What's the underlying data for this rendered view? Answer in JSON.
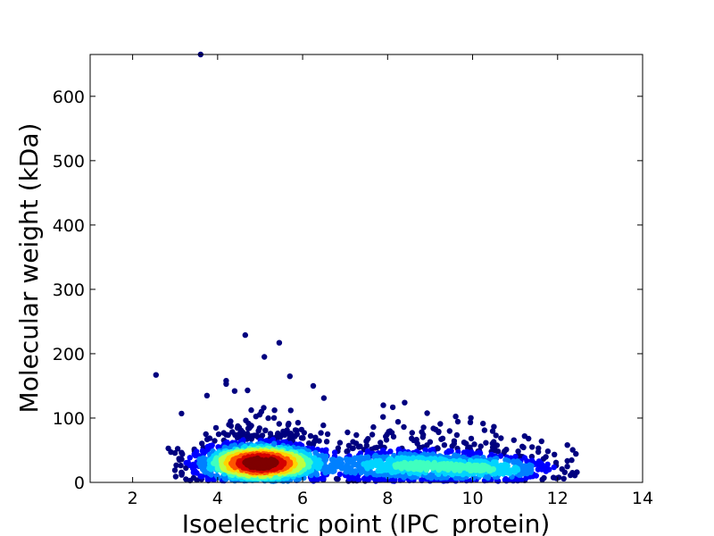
{
  "chart_data": {
    "type": "scatter",
    "title": "",
    "xlabel": "Isoelectric point (IPC_protein)",
    "ylabel": "Molecular weight (kDa)",
    "xlim": [
      1,
      14
    ],
    "ylim": [
      0,
      665
    ],
    "xticks": [
      2,
      4,
      6,
      8,
      10,
      12,
      14
    ],
    "yticks": [
      0,
      100,
      200,
      300,
      400,
      500,
      600
    ],
    "xtick_labels": [
      "2",
      "4",
      "6",
      "8",
      "10",
      "12",
      "14"
    ],
    "ytick_labels": [
      "0",
      "100",
      "200",
      "300",
      "400",
      "500",
      "600"
    ],
    "grid": false,
    "legend": "none",
    "color_scale": "density (jet colormap: blue = sparse, red = dense)",
    "colors": [
      "#00007f",
      "#0000ff",
      "#0080ff",
      "#00d4ff",
      "#40ffbf",
      "#bfff40",
      "#ffd400",
      "#ff5500",
      "#d40000",
      "#7f0000"
    ],
    "density_clusters": [
      {
        "x_mean": 5.0,
        "x_sd": 0.75,
        "y_mean": 30,
        "y_sd": 16,
        "weight": 0.58
      },
      {
        "x_mean": 8.6,
        "x_sd": 1.3,
        "y_mean": 26,
        "y_sd": 14,
        "weight": 0.32
      },
      {
        "x_mean": 10.6,
        "x_sd": 0.8,
        "y_mean": 20,
        "y_sd": 11,
        "weight": 0.1
      }
    ],
    "notable_points": [
      {
        "x": 3.6,
        "y": 665
      },
      {
        "x": 4.65,
        "y": 229
      },
      {
        "x": 5.45,
        "y": 217
      },
      {
        "x": 5.1,
        "y": 195
      },
      {
        "x": 2.55,
        "y": 167
      },
      {
        "x": 5.7,
        "y": 165
      },
      {
        "x": 4.2,
        "y": 158
      },
      {
        "x": 4.2,
        "y": 153
      },
      {
        "x": 6.25,
        "y": 150
      },
      {
        "x": 4.4,
        "y": 142
      },
      {
        "x": 3.75,
        "y": 135
      },
      {
        "x": 6.5,
        "y": 131
      },
      {
        "x": 8.4,
        "y": 124
      },
      {
        "x": 7.9,
        "y": 120
      },
      {
        "x": 3.15,
        "y": 107
      },
      {
        "x": 10.55,
        "y": 73
      },
      {
        "x": 11.4,
        "y": 55
      },
      {
        "x": 11.55,
        "y": 53
      },
      {
        "x": 12.35,
        "y": 15
      },
      {
        "x": 11.8,
        "y": 20
      },
      {
        "x": 2.9,
        "y": 47
      },
      {
        "x": 3.1,
        "y": 35
      }
    ]
  }
}
